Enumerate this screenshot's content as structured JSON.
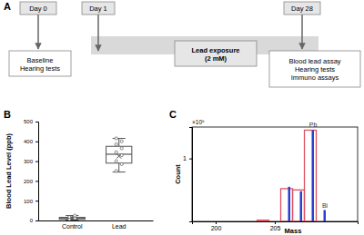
{
  "diagram": {
    "label": "A",
    "nodes": [
      {
        "lines": [
          "Day 0"
        ]
      },
      {
        "lines": [
          "Day 1"
        ]
      },
      {
        "lines": [
          "Day 28"
        ]
      },
      {
        "lines": [
          "Baseline",
          "Hearing tests"
        ]
      },
      {
        "lines": [
          "Lead exposure",
          "(2 mM)"
        ]
      },
      {
        "lines": [
          "Blood lead assay",
          "Hearing tests",
          "Immuno assays"
        ]
      }
    ]
  },
  "chart_data": [
    {
      "type": "box",
      "title": "B",
      "y_label": "Blood Lead Level (ppb)",
      "categories": [
        "Control",
        "Lead"
      ],
      "min": [
        2,
        245
      ],
      "q1": [
        6,
        290
      ],
      "median": [
        10,
        335
      ],
      "q3": [
        16,
        375
      ],
      "max": [
        25,
        415
      ],
      "mean": [
        12,
        325
      ],
      "points": [
        [
          5,
          12,
          18,
          25
        ],
        [
          250,
          285,
          300,
          330,
          345,
          365,
          385,
          400,
          415
        ]
      ],
      "color": "#555555",
      "ylim": [
        0,
        500
      ],
      "yticks": [
        0,
        100,
        200,
        300,
        400,
        500
      ]
    },
    {
      "type": "bar",
      "title": "C",
      "x_label": "Mass",
      "y_label": "Count",
      "y_scale_label": "×10⁵",
      "series": [
        {
          "type": "bar",
          "line_style": "outline",
          "color": "#e0505f",
          "x": [
            204,
            206,
            207,
            208
          ],
          "values": [
            0.02,
            0.52,
            0.5,
            1.45
          ]
        },
        {
          "type": "stem",
          "color": "#2a3fd0",
          "x": [
            206,
            207,
            208,
            209
          ],
          "values": [
            0.55,
            0.48,
            1.45,
            0.18
          ]
        }
      ],
      "annotations": [
        {
          "text": "Pb",
          "x": 208,
          "y": 1.45
        },
        {
          "text": "Bi",
          "x": 209,
          "y": 0.18
        }
      ],
      "xlim": [
        198,
        212
      ],
      "xticks": [
        200,
        205
      ],
      "ylim": [
        0,
        1.5
      ],
      "yticks": [
        1
      ]
    }
  ]
}
